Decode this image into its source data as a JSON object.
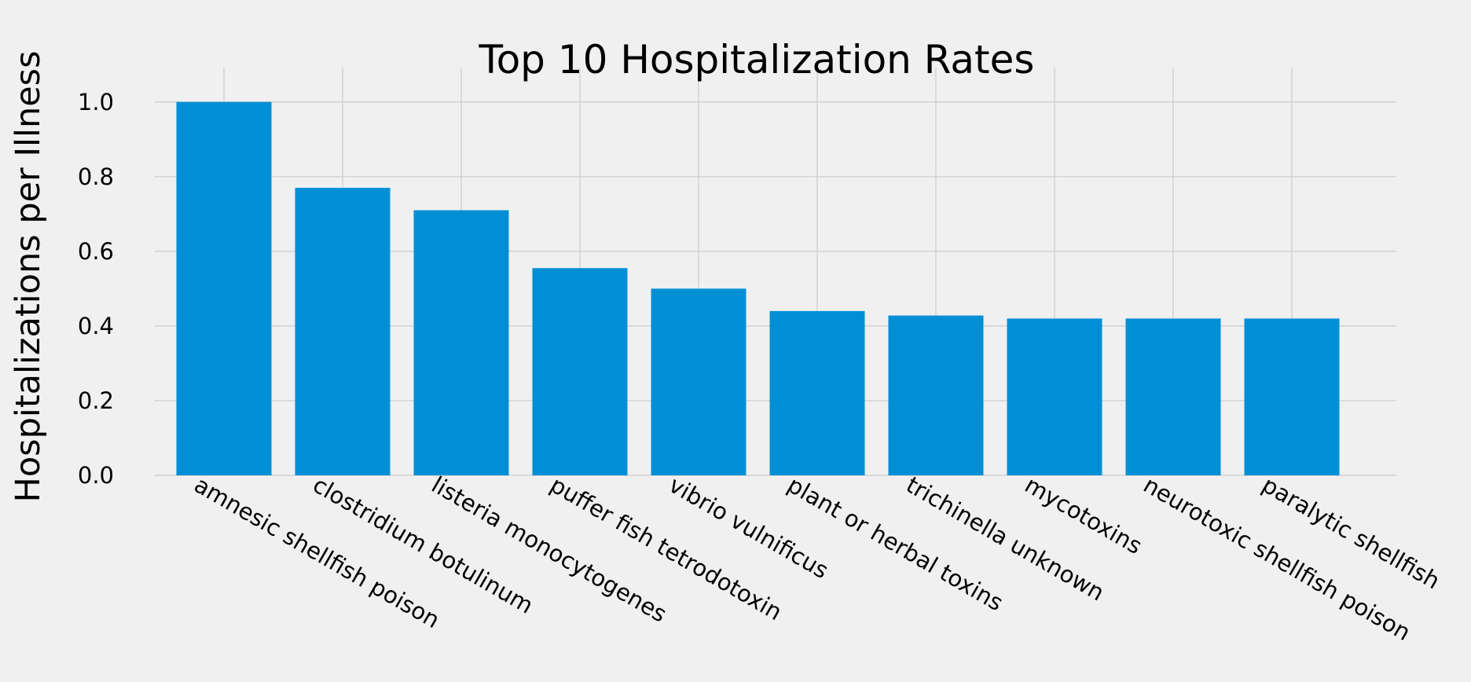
{
  "chart_data": {
    "type": "bar",
    "title": "Top 10 Hospitalization Rates",
    "xlabel": "",
    "ylabel": "Hospitalizations per Illness",
    "categories": [
      "amnesic shellfish poison",
      "clostridium botulinum",
      "listeria monocytogenes",
      "puffer fish tetrodotoxin",
      "vibrio vulnificus",
      "plant or herbal toxins",
      "trichinella unknown",
      "mycotoxins",
      "neurotoxic shellfish poison",
      "paralytic shellfish"
    ],
    "values": [
      1.0,
      0.77,
      0.71,
      0.555,
      0.5,
      0.44,
      0.428,
      0.42,
      0.42,
      0.42
    ],
    "ylim": [
      0,
      1.05
    ],
    "yticks": [
      0.0,
      0.2,
      0.4,
      0.6,
      0.8,
      1.0
    ],
    "ytick_labels": [
      "0.0",
      "0.2",
      "0.4",
      "0.6",
      "0.8",
      "1.0"
    ],
    "grid": true,
    "bar_color": "#008fd5",
    "background_color": "#f0f0f0",
    "grid_color": "#cbcbcb"
  }
}
